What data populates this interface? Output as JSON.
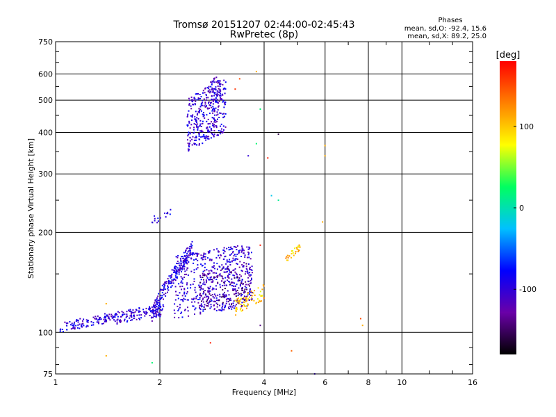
{
  "chart_data": {
    "type": "scatter",
    "title": "Tromsø 20151207 02:44:00-02:45:43",
    "subtitle": "RwPretec (8p)",
    "xlabel": "Frequency [MHz]",
    "ylabel": "Stationary phase Virtual Height [km]",
    "x_scale": "log2",
    "y_scale": "log",
    "xlim": [
      1,
      16
    ],
    "ylim": [
      75,
      750
    ],
    "x_ticks": [
      1,
      2,
      4,
      6,
      8,
      10,
      16
    ],
    "y_ticks": [
      75,
      100,
      200,
      300,
      400,
      500,
      600,
      750
    ],
    "grid": true,
    "stats": {
      "heading": "Phases",
      "o_line": "mean, sd,O: -92.4, 15.6",
      "x_line": "mean, sd,X:  89.2, 25.0"
    },
    "colorbar": {
      "label": "[deg]",
      "range": [
        -180,
        180
      ],
      "ticks": [
        100,
        0,
        -100
      ],
      "colors": [
        "#000000",
        "#6a00a8",
        "#0000ff",
        "#00c0ff",
        "#00ff60",
        "#ffff00",
        "#ff8000",
        "#ff0000"
      ]
    },
    "clusters": [
      {
        "x0": 1.03,
        "x1": 1.5,
        "ylo0": 100,
        "ylo1": 108,
        "spread": 1.07,
        "phase": -100,
        "n": 120
      },
      {
        "x0": 1.5,
        "x1": 2.05,
        "ylo0": 106,
        "ylo1": 112,
        "spread": 1.09,
        "phase": -100,
        "n": 130
      },
      {
        "x0": 1.9,
        "x1": 2.5,
        "ylo0": 108,
        "ylo1": 170,
        "spread": 1.12,
        "phase": -95,
        "n": 210
      },
      {
        "x0": 2.2,
        "x1": 3.7,
        "ylo0": 110,
        "ylo1": 120,
        "spread": 1.55,
        "phase": -100,
        "n": 520
      },
      {
        "x0": 2.6,
        "x1": 3.7,
        "ylo0": 115,
        "ylo1": 125,
        "spread": 1.3,
        "phase": -130,
        "n": 180
      },
      {
        "x0": 2.4,
        "x1": 3.1,
        "ylo0": 350,
        "ylo1": 400,
        "spread": 1.45,
        "phase": -100,
        "n": 330
      },
      {
        "x0": 2.7,
        "x1": 3.0,
        "ylo0": 470,
        "ylo1": 520,
        "spread": 1.18,
        "phase": -110,
        "n": 60
      },
      {
        "x0": 3.3,
        "x1": 4.0,
        "ylo0": 112,
        "ylo1": 125,
        "spread": 1.12,
        "phase": 100,
        "n": 70
      },
      {
        "x0": 4.6,
        "x1": 5.1,
        "ylo0": 160,
        "ylo1": 178,
        "spread": 1.05,
        "phase": 100,
        "n": 28
      },
      {
        "x0": 1.9,
        "x1": 2.2,
        "ylo0": 210,
        "ylo1": 225,
        "spread": 1.08,
        "phase": -100,
        "n": 16
      }
    ],
    "scattered": [
      {
        "x": 1.4,
        "y": 85,
        "phase": 110
      },
      {
        "x": 1.9,
        "y": 81,
        "phase": 20
      },
      {
        "x": 1.4,
        "y": 122,
        "phase": 110
      },
      {
        "x": 2.8,
        "y": 93,
        "phase": 170
      },
      {
        "x": 3.8,
        "y": 610,
        "phase": 110
      },
      {
        "x": 3.4,
        "y": 580,
        "phase": 150
      },
      {
        "x": 3.3,
        "y": 540,
        "phase": 160
      },
      {
        "x": 3.9,
        "y": 470,
        "phase": 20
      },
      {
        "x": 4.4,
        "y": 395,
        "phase": -160
      },
      {
        "x": 3.8,
        "y": 370,
        "phase": 20
      },
      {
        "x": 4.1,
        "y": 335,
        "phase": 170
      },
      {
        "x": 3.6,
        "y": 340,
        "phase": -100
      },
      {
        "x": 6.0,
        "y": 365,
        "phase": 110
      },
      {
        "x": 6.0,
        "y": 340,
        "phase": 110
      },
      {
        "x": 5.9,
        "y": 215,
        "phase": 110
      },
      {
        "x": 4.2,
        "y": 258,
        "phase": -20
      },
      {
        "x": 4.4,
        "y": 250,
        "phase": 10
      },
      {
        "x": 4.8,
        "y": 88,
        "phase": 140
      },
      {
        "x": 7.6,
        "y": 110,
        "phase": 150
      },
      {
        "x": 7.7,
        "y": 105,
        "phase": 110
      },
      {
        "x": 3.9,
        "y": 183,
        "phase": 170
      },
      {
        "x": 3.9,
        "y": 105,
        "phase": -140
      },
      {
        "x": 5.6,
        "y": 75,
        "phase": -100
      }
    ]
  }
}
